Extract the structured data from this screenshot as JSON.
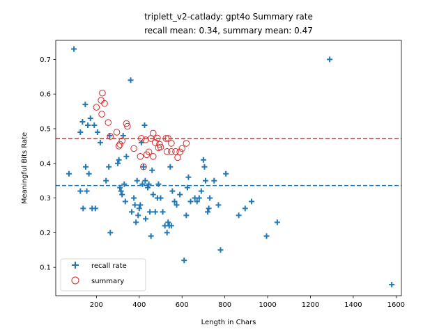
{
  "chart_data": {
    "type": "scatter",
    "title": "triplett_v2-catlady: gpt4o Summary rate",
    "subtitle": "recall mean: 0.34, summary mean: 0.47",
    "xlabel": "Length in Chars",
    "ylabel": "Meaningful Bits Rate",
    "xlim": [
      10,
      1625
    ],
    "ylim": [
      0.018,
      0.755
    ],
    "xticks": [
      200,
      400,
      600,
      800,
      1000,
      1200,
      1400,
      1600
    ],
    "yticks": [
      0.1,
      0.2,
      0.3,
      0.4,
      0.5,
      0.6,
      0.7
    ],
    "grid": false,
    "legend": "lower left",
    "series": [
      {
        "name": "recall rate",
        "marker": "plus",
        "color": "#1f77b4",
        "points": [
          [
            95,
            0.73
          ],
          [
            72,
            0.37
          ],
          [
            125,
            0.49
          ],
          [
            135,
            0.52
          ],
          [
            148,
            0.57
          ],
          [
            160,
            0.51
          ],
          [
            172,
            0.53
          ],
          [
            190,
            0.51
          ],
          [
            205,
            0.49
          ],
          [
            218,
            0.46
          ],
          [
            150,
            0.39
          ],
          [
            165,
            0.37
          ],
          [
            125,
            0.32
          ],
          [
            155,
            0.32
          ],
          [
            138,
            0.27
          ],
          [
            180,
            0.27
          ],
          [
            195,
            0.27
          ],
          [
            245,
            0.35
          ],
          [
            258,
            0.39
          ],
          [
            262,
            0.48
          ],
          [
            265,
            0.2
          ],
          [
            300,
            0.4
          ],
          [
            305,
            0.41
          ],
          [
            310,
            0.33
          ],
          [
            315,
            0.32
          ],
          [
            320,
            0.31
          ],
          [
            325,
            0.48
          ],
          [
            330,
            0.34
          ],
          [
            335,
            0.29
          ],
          [
            340,
            0.42
          ],
          [
            360,
            0.64
          ],
          [
            365,
            0.26
          ],
          [
            375,
            0.3
          ],
          [
            380,
            0.28
          ],
          [
            385,
            0.23
          ],
          [
            390,
            0.35
          ],
          [
            395,
            0.25
          ],
          [
            400,
            0.27
          ],
          [
            405,
            0.28
          ],
          [
            410,
            0.46
          ],
          [
            415,
            0.34
          ],
          [
            420,
            0.39
          ],
          [
            425,
            0.51
          ],
          [
            428,
            0.35
          ],
          [
            430,
            0.24
          ],
          [
            440,
            0.33
          ],
          [
            445,
            0.34
          ],
          [
            450,
            0.26
          ],
          [
            455,
            0.19
          ],
          [
            460,
            0.38
          ],
          [
            465,
            0.31
          ],
          [
            475,
            0.26
          ],
          [
            485,
            0.3
          ],
          [
            490,
            0.34
          ],
          [
            500,
            0.3
          ],
          [
            510,
            0.26
          ],
          [
            520,
            0.22
          ],
          [
            530,
            0.2
          ],
          [
            535,
            0.23
          ],
          [
            540,
            0.22
          ],
          [
            545,
            0.39
          ],
          [
            550,
            0.22
          ],
          [
            555,
            0.32
          ],
          [
            565,
            0.29
          ],
          [
            575,
            0.28
          ],
          [
            590,
            0.31
          ],
          [
            610,
            0.12
          ],
          [
            620,
            0.25
          ],
          [
            625,
            0.33
          ],
          [
            630,
            0.36
          ],
          [
            640,
            0.29
          ],
          [
            660,
            0.3
          ],
          [
            670,
            0.29
          ],
          [
            680,
            0.3
          ],
          [
            690,
            0.32
          ],
          [
            700,
            0.41
          ],
          [
            705,
            0.39
          ],
          [
            710,
            0.35
          ],
          [
            720,
            0.26
          ],
          [
            725,
            0.27
          ],
          [
            730,
            0.3
          ],
          [
            750,
            0.35
          ],
          [
            770,
            0.28
          ],
          [
            780,
            0.15
          ],
          [
            805,
            0.37
          ],
          [
            865,
            0.25
          ],
          [
            895,
            0.27
          ],
          [
            925,
            0.29
          ],
          [
            995,
            0.19
          ],
          [
            1045,
            0.23
          ],
          [
            1290,
            0.7
          ],
          [
            1580,
            0.05
          ]
        ]
      },
      {
        "name": "summary",
        "marker": "open-circle",
        "color": "#d62728",
        "points": [
          [
            228,
            0.603
          ],
          [
            222,
            0.582
          ],
          [
            238,
            0.573
          ],
          [
            200,
            0.562
          ],
          [
            225,
            0.542
          ],
          [
            255,
            0.518
          ],
          [
            340,
            0.515
          ],
          [
            345,
            0.507
          ],
          [
            295,
            0.49
          ],
          [
            265,
            0.478
          ],
          [
            465,
            0.487
          ],
          [
            410,
            0.472
          ],
          [
            430,
            0.468
          ],
          [
            455,
            0.472
          ],
          [
            485,
            0.473
          ],
          [
            525,
            0.472
          ],
          [
            535,
            0.472
          ],
          [
            320,
            0.465
          ],
          [
            310,
            0.455
          ],
          [
            305,
            0.45
          ],
          [
            475,
            0.46
          ],
          [
            495,
            0.455
          ],
          [
            500,
            0.447
          ],
          [
            490,
            0.445
          ],
          [
            550,
            0.458
          ],
          [
            620,
            0.458
          ],
          [
            375,
            0.443
          ],
          [
            600,
            0.443
          ],
          [
            530,
            0.434
          ],
          [
            550,
            0.434
          ],
          [
            570,
            0.434
          ],
          [
            590,
            0.433
          ],
          [
            445,
            0.433
          ],
          [
            435,
            0.425
          ],
          [
            405,
            0.42
          ],
          [
            465,
            0.42
          ],
          [
            580,
            0.417
          ],
          [
            420,
            0.39
          ]
        ]
      }
    ],
    "reference_lines": [
      {
        "series": "summary",
        "y": 0.471,
        "style": "dashed",
        "color": "#d62728"
      },
      {
        "series": "recall rate",
        "y": 0.336,
        "style": "dashed",
        "color": "#1f77b4"
      }
    ]
  }
}
